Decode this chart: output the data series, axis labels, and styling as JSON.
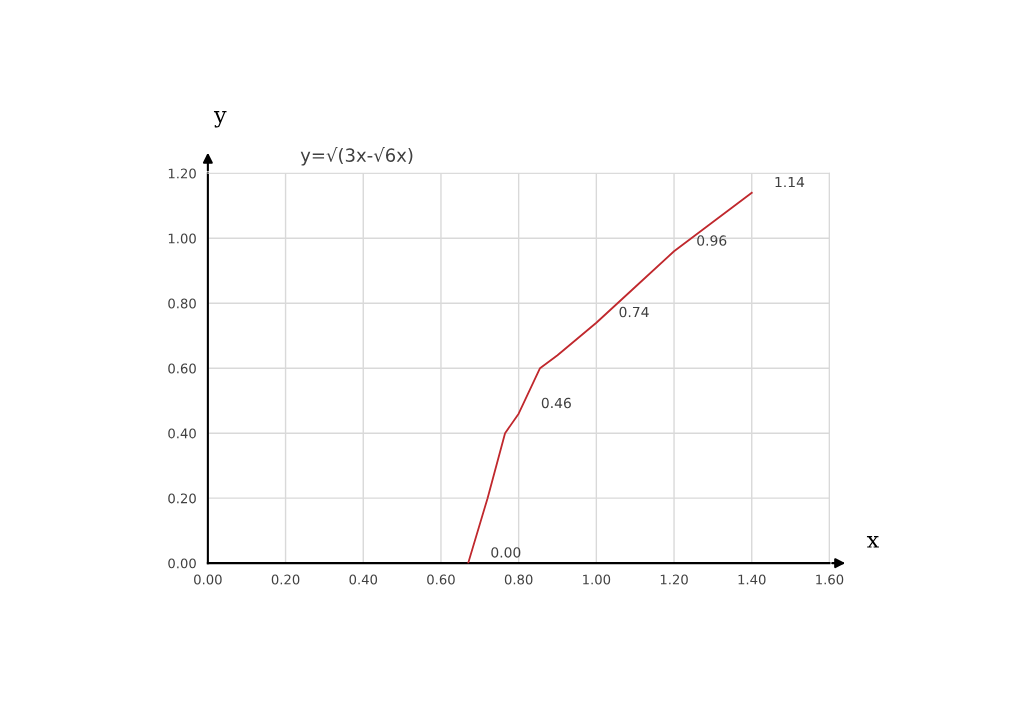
{
  "chart_data": {
    "type": "line",
    "title": "y=√(3x-√6x)",
    "xlabel": "x",
    "ylabel": "y",
    "x": [
      0.67,
      0.72,
      0.765,
      0.8,
      0.855,
      0.9,
      1.0,
      1.1,
      1.2,
      1.3,
      1.4
    ],
    "series": [
      {
        "color": "#c0282d",
        "values": [
          0.0,
          0.2,
          0.4,
          0.46,
          0.6,
          0.64,
          0.74,
          0.85,
          0.96,
          1.05,
          1.14
        ],
        "value_labels": [
          "0.00",
          null,
          null,
          "0.46",
          null,
          null,
          "0.74",
          null,
          "0.96",
          null,
          "1.14"
        ]
      }
    ],
    "xlim": [
      0,
      1.6
    ],
    "ylim": [
      0,
      1.2
    ],
    "xticks": [
      {
        "value": 0,
        "label": "0.00"
      },
      {
        "value": 0.2,
        "label": "0.20"
      },
      {
        "value": 0.4,
        "label": "0.40"
      },
      {
        "value": 0.6,
        "label": "0.60"
      },
      {
        "value": 0.8,
        "label": "0.80"
      },
      {
        "value": 1.0,
        "label": "1.00"
      },
      {
        "value": 1.2,
        "label": "1.20"
      },
      {
        "value": 1.4,
        "label": "1.40"
      },
      {
        "value": 1.6,
        "label": "1.60"
      }
    ],
    "yticks": [
      {
        "value": 0,
        "label": "0.00"
      },
      {
        "value": 0.2,
        "label": "0.20"
      },
      {
        "value": 0.4,
        "label": "0.40"
      },
      {
        "value": 0.6,
        "label": "0.60"
      },
      {
        "value": 0.8,
        "label": "0.80"
      },
      {
        "value": 1.0,
        "label": "1.00"
      },
      {
        "value": 1.2,
        "label": "1.20"
      }
    ],
    "grid": true,
    "marker": "none",
    "line_style": "solid"
  }
}
